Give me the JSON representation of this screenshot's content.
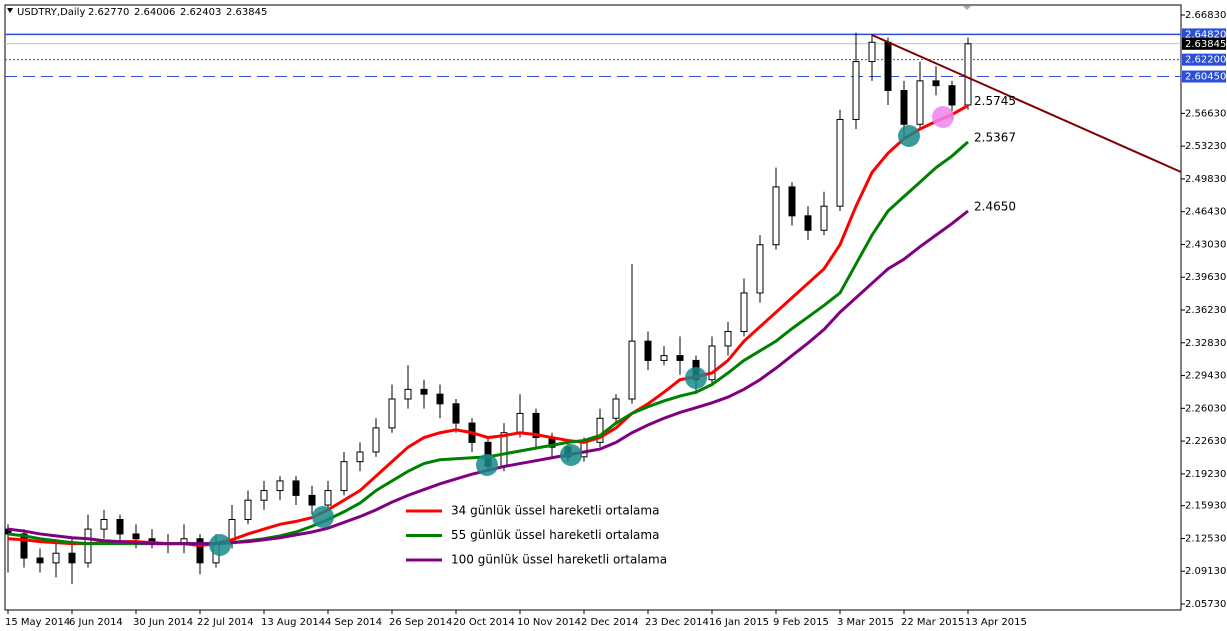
{
  "chart_data": {
    "type": "candlestick",
    "header": {
      "symbol": "USDTRY,Daily",
      "quote": [
        "2.62770",
        "2.64006",
        "2.62403",
        "2.63845"
      ]
    },
    "categories": [
      "15 May 2014",
      null,
      null,
      null,
      "6 Jun 2014",
      null,
      null,
      null,
      "30 Jun 2014",
      null,
      null,
      null,
      "22 Jul 2014",
      null,
      null,
      null,
      "13 Aug 2014",
      null,
      null,
      null,
      "4 Sep 2014",
      null,
      null,
      null,
      "26 Sep 2014",
      null,
      null,
      null,
      "20 Oct 2014",
      null,
      null,
      null,
      "10 Nov 2014",
      null,
      null,
      null,
      "2 Dec 2014",
      null,
      null,
      null,
      "23 Dec 2014",
      null,
      null,
      null,
      "16 Jan 2015",
      null,
      null,
      null,
      "9 Feb 2015",
      null,
      null,
      null,
      "3 Mar 2015",
      null,
      null,
      null,
      "22 Mar 2015",
      null,
      null,
      null,
      "13 Apr 2015"
    ],
    "candles": {
      "up_color": "#ffffff",
      "down_color": "#000000",
      "open": [
        2.135,
        2.13,
        2.105,
        2.1,
        2.11,
        2.1,
        2.135,
        2.145,
        2.13,
        2.125,
        2.12,
        2.12,
        2.125,
        2.1,
        2.12,
        2.145,
        2.165,
        2.175,
        2.185,
        2.17,
        2.16,
        2.175,
        2.205,
        2.215,
        2.24,
        2.27,
        2.28,
        2.275,
        2.265,
        2.245,
        2.225,
        2.2,
        2.235,
        2.255,
        2.23,
        2.22,
        2.21,
        2.225,
        2.25,
        2.27,
        2.33,
        2.31,
        2.315,
        2.31,
        2.29,
        2.325,
        2.34,
        2.38,
        2.43,
        2.49,
        2.46,
        2.445,
        2.47,
        2.56,
        2.62,
        2.64,
        2.59,
        2.555,
        2.6,
        2.595,
        2.575
      ],
      "high": [
        2.14,
        2.135,
        2.115,
        2.12,
        2.125,
        2.15,
        2.155,
        2.15,
        2.14,
        2.135,
        2.13,
        2.14,
        2.13,
        2.13,
        2.16,
        2.175,
        2.185,
        2.19,
        2.19,
        2.18,
        2.185,
        2.215,
        2.225,
        2.25,
        2.285,
        2.305,
        2.29,
        2.285,
        2.27,
        2.25,
        2.23,
        2.245,
        2.275,
        2.26,
        2.235,
        2.225,
        2.23,
        2.26,
        2.275,
        2.41,
        2.34,
        2.325,
        2.335,
        2.315,
        2.335,
        2.35,
        2.395,
        2.44,
        2.51,
        2.495,
        2.47,
        2.485,
        2.57,
        2.65,
        2.6482,
        2.645,
        2.6,
        2.62,
        2.615,
        2.6,
        2.645
      ],
      "low": [
        2.09,
        2.095,
        2.09,
        2.085,
        2.078,
        2.095,
        2.125,
        2.12,
        2.115,
        2.115,
        2.11,
        2.11,
        2.088,
        2.095,
        2.115,
        2.14,
        2.155,
        2.165,
        2.16,
        2.15,
        2.155,
        2.17,
        2.195,
        2.21,
        2.235,
        2.26,
        2.26,
        2.25,
        2.235,
        2.215,
        2.195,
        2.195,
        2.23,
        2.22,
        2.21,
        2.205,
        2.205,
        2.22,
        2.245,
        2.265,
        2.3,
        2.305,
        2.295,
        2.275,
        2.285,
        2.315,
        2.335,
        2.37,
        2.425,
        2.45,
        2.435,
        2.44,
        2.465,
        2.55,
        2.6,
        2.575,
        2.54,
        2.55,
        2.585,
        2.56,
        2.57
      ],
      "close": [
        2.13,
        2.105,
        2.1,
        2.11,
        2.1,
        2.135,
        2.145,
        2.13,
        2.125,
        2.12,
        2.12,
        2.125,
        2.1,
        2.12,
        2.145,
        2.165,
        2.175,
        2.185,
        2.17,
        2.16,
        2.175,
        2.205,
        2.215,
        2.24,
        2.27,
        2.28,
        2.275,
        2.265,
        2.245,
        2.225,
        2.2,
        2.235,
        2.255,
        2.23,
        2.22,
        2.21,
        2.225,
        2.25,
        2.27,
        2.33,
        2.31,
        2.315,
        2.31,
        2.29,
        2.325,
        2.34,
        2.38,
        2.43,
        2.49,
        2.46,
        2.445,
        2.47,
        2.56,
        2.62,
        2.64,
        2.59,
        2.555,
        2.6,
        2.595,
        2.575,
        2.63845
      ]
    },
    "series": [
      {
        "name": "34 günlük üssel hareketli ortalama",
        "color": "#ff0000",
        "end_label": "2.5745",
        "values": [
          2.125,
          2.124,
          2.122,
          2.121,
          2.12,
          2.12,
          2.121,
          2.122,
          2.122,
          2.121,
          2.12,
          2.12,
          2.118,
          2.12,
          2.124,
          2.13,
          2.135,
          2.14,
          2.143,
          2.147,
          2.155,
          2.165,
          2.175,
          2.19,
          2.205,
          2.22,
          2.23,
          2.235,
          2.238,
          2.235,
          2.23,
          2.232,
          2.235,
          2.233,
          2.23,
          2.227,
          2.225,
          2.23,
          2.24,
          2.255,
          2.265,
          2.277,
          2.29,
          2.293,
          2.297,
          2.31,
          2.33,
          2.345,
          2.36,
          2.375,
          2.39,
          2.405,
          2.43,
          2.47,
          2.505,
          2.525,
          2.54,
          2.55,
          2.558,
          2.565,
          2.5745
        ]
      },
      {
        "name": "55 günlük üssel hareketli ortalama",
        "color": "#008000",
        "end_label": "2.5367",
        "values": [
          2.13,
          2.128,
          2.125,
          2.123,
          2.121,
          2.12,
          2.12,
          2.12,
          2.12,
          2.12,
          2.12,
          2.12,
          2.12,
          2.12,
          2.121,
          2.123,
          2.125,
          2.128,
          2.132,
          2.138,
          2.145,
          2.153,
          2.162,
          2.175,
          2.185,
          2.195,
          2.203,
          2.207,
          2.208,
          2.209,
          2.21,
          2.213,
          2.216,
          2.219,
          2.222,
          2.225,
          2.227,
          2.232,
          2.245,
          2.255,
          2.262,
          2.268,
          2.273,
          2.277,
          2.285,
          2.297,
          2.31,
          2.32,
          2.33,
          2.343,
          2.355,
          2.367,
          2.38,
          2.41,
          2.44,
          2.465,
          2.48,
          2.495,
          2.51,
          2.522,
          2.5367
        ]
      },
      {
        "name": "100 günlük üssel hareketli ortalama",
        "color": "#800080",
        "end_label": "2.4650",
        "values": [
          2.135,
          2.133,
          2.13,
          2.128,
          2.126,
          2.125,
          2.123,
          2.122,
          2.121,
          2.12,
          2.12,
          2.12,
          2.12,
          2.12,
          2.121,
          2.122,
          2.124,
          2.126,
          2.129,
          2.132,
          2.136,
          2.142,
          2.148,
          2.155,
          2.163,
          2.17,
          2.176,
          2.182,
          2.187,
          2.192,
          2.196,
          2.2,
          2.203,
          2.206,
          2.209,
          2.212,
          2.215,
          2.218,
          2.225,
          2.235,
          2.243,
          2.25,
          2.256,
          2.261,
          2.266,
          2.272,
          2.28,
          2.29,
          2.302,
          2.315,
          2.328,
          2.342,
          2.36,
          2.375,
          2.39,
          2.405,
          2.415,
          2.428,
          2.44,
          2.452,
          2.465
        ]
      }
    ],
    "ylim": [
      2.0511,
      2.6787
    ],
    "yticks": [
      {
        "value": 2.6683,
        "label": "2.66830"
      },
      {
        "value": 2.5663,
        "label": "2.56630"
      },
      {
        "value": 2.5323,
        "label": "2.53230"
      },
      {
        "value": 2.4983,
        "label": "2.49830"
      },
      {
        "value": 2.4643,
        "label": "2.46430"
      },
      {
        "value": 2.4303,
        "label": "2.43030"
      },
      {
        "value": 2.3963,
        "label": "2.39630"
      },
      {
        "value": 2.3623,
        "label": "2.36230"
      },
      {
        "value": 2.3283,
        "label": "2.32830"
      },
      {
        "value": 2.2943,
        "label": "2.29430"
      },
      {
        "value": 2.2603,
        "label": "2.26030"
      },
      {
        "value": 2.2263,
        "label": "2.22630"
      },
      {
        "value": 2.1923,
        "label": "2.19230"
      },
      {
        "value": 2.1593,
        "label": "2.15930"
      },
      {
        "value": 2.1253,
        "label": "2.12530"
      },
      {
        "value": 2.0913,
        "label": "2.09130"
      },
      {
        "value": 2.0573,
        "label": "2.05730"
      }
    ],
    "levels": [
      {
        "value": 2.6482,
        "label": "2.64820",
        "color": "#2b4fd6",
        "style": "solid"
      },
      {
        "value": 2.63845,
        "label": "2.63845",
        "color": "#000000",
        "style": "current"
      },
      {
        "value": 2.622,
        "label": "2.62200",
        "color": "#2b4fd6",
        "style": "dotted"
      },
      {
        "value": 2.6045,
        "label": "2.60450",
        "color": "#2b4fd6",
        "style": "dashed"
      }
    ]
  }
}
